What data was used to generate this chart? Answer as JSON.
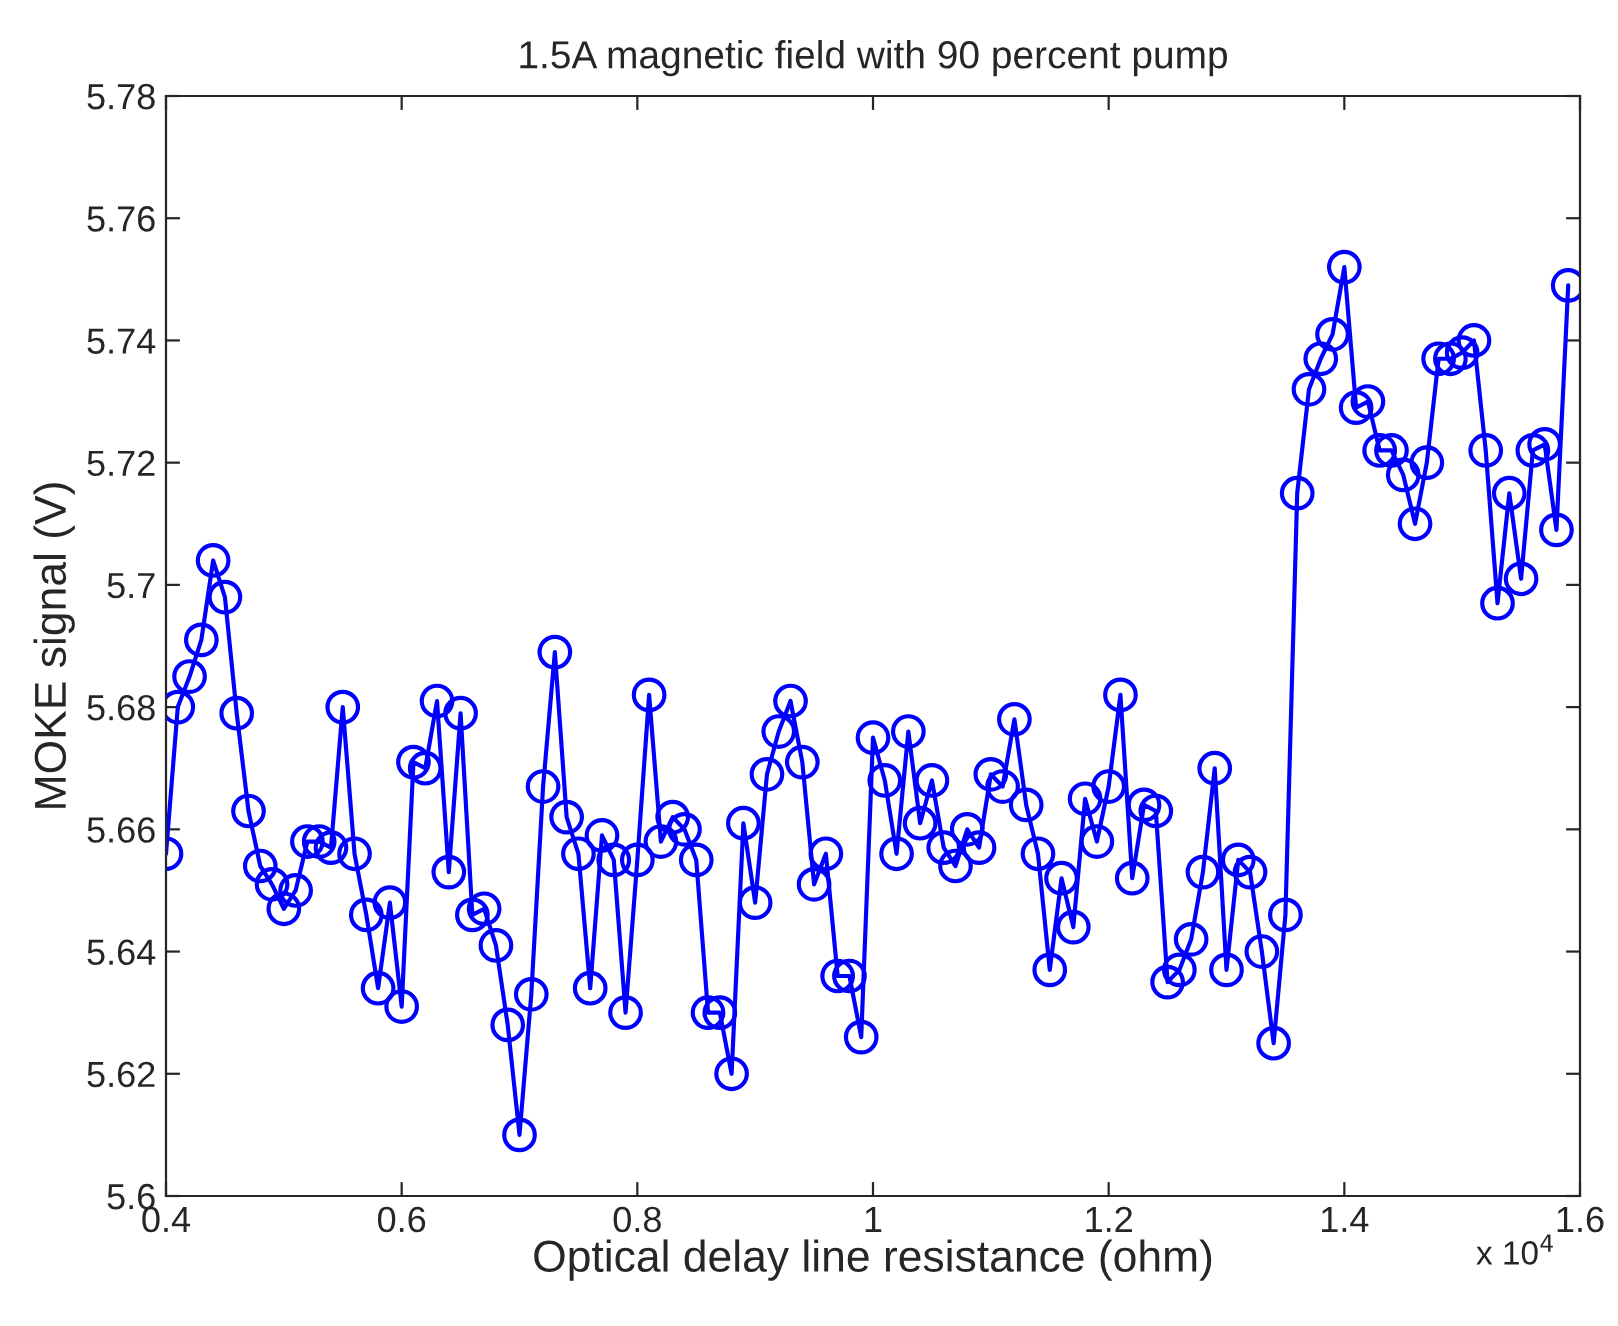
{
  "chart_data": {
    "type": "line",
    "title": "1.5A magnetic field with 90 percent pump",
    "xlabel": "Optical delay line resistance (ohm)",
    "ylabel": "MOKE signal (V)",
    "annotations": [
      "x 10$^{4}$"
    ],
    "x": [
      0.4,
      0.41,
      0.42,
      0.43,
      0.44,
      0.45,
      0.46,
      0.47,
      0.48,
      0.49,
      0.5,
      0.51,
      0.52,
      0.53,
      0.54,
      0.55,
      0.56,
      0.57,
      0.58,
      0.59,
      0.6,
      0.61,
      0.62,
      0.63,
      0.64,
      0.65,
      0.66,
      0.67,
      0.68,
      0.69,
      0.7,
      0.71,
      0.72,
      0.73,
      0.74,
      0.75,
      0.76,
      0.77,
      0.78,
      0.79,
      0.8,
      0.81,
      0.82,
      0.83,
      0.84,
      0.85,
      0.86,
      0.87,
      0.88,
      0.89,
      0.9,
      0.91,
      0.92,
      0.93,
      0.94,
      0.95,
      0.96,
      0.97,
      0.98,
      0.99,
      1.0,
      1.01,
      1.02,
      1.03,
      1.04,
      1.05,
      1.06,
      1.07,
      1.08,
      1.09,
      1.1,
      1.11,
      1.12,
      1.13,
      1.14,
      1.15,
      1.16,
      1.17,
      1.18,
      1.19,
      1.2,
      1.21,
      1.22,
      1.23,
      1.24,
      1.25,
      1.26,
      1.27,
      1.28,
      1.29,
      1.3,
      1.31,
      1.32,
      1.33,
      1.34,
      1.35,
      1.36,
      1.37,
      1.38,
      1.39,
      1.4,
      1.41,
      1.42,
      1.43,
      1.44,
      1.45,
      1.46,
      1.47,
      1.48,
      1.49,
      1.5,
      1.51,
      1.52,
      1.53,
      1.54,
      1.55,
      1.56,
      1.57,
      1.58,
      1.59
    ],
    "series": [
      {
        "color": "#0000ff",
        "values": [
          5.656,
          5.68,
          5.685,
          5.691,
          5.704,
          5.698,
          5.679,
          5.663,
          5.654,
          5.651,
          5.647,
          5.65,
          5.658,
          5.658,
          5.657,
          5.68,
          5.656,
          5.646,
          5.634,
          5.648,
          5.631,
          5.671,
          5.67,
          5.681,
          5.653,
          5.679,
          5.646,
          5.647,
          5.641,
          5.628,
          5.61,
          5.633,
          5.667,
          5.689,
          5.662,
          5.656,
          5.634,
          5.659,
          5.655,
          5.63,
          5.655,
          5.682,
          5.658,
          5.662,
          5.66,
          5.655,
          5.63,
          5.63,
          5.62,
          5.661,
          5.648,
          5.669,
          5.676,
          5.681,
          5.671,
          5.651,
          5.656,
          5.636,
          5.636,
          5.626,
          5.675,
          5.668,
          5.656,
          5.676,
          5.661,
          5.668,
          5.657,
          5.654,
          5.66,
          5.657,
          5.669,
          5.667,
          5.678,
          5.664,
          5.656,
          5.637,
          5.652,
          5.644,
          5.665,
          5.658,
          5.667,
          5.682,
          5.652,
          5.664,
          5.663,
          5.635,
          5.637,
          5.642,
          5.653,
          5.67,
          5.637,
          5.655,
          5.653,
          5.64,
          5.625,
          5.646,
          5.715,
          5.732,
          5.737,
          5.741,
          5.752,
          5.729,
          5.73,
          5.722,
          5.722,
          5.718,
          5.71,
          5.72,
          5.737,
          5.737,
          5.738,
          5.74,
          5.722,
          5.697,
          5.715,
          5.701,
          5.722,
          5.723,
          5.709,
          5.749
        ]
      }
    ],
    "xlim": [
      0.4,
      1.6
    ],
    "xticks": [
      0.4,
      0.6,
      0.8,
      1,
      1.2,
      1.4,
      1.6
    ],
    "ylim": [
      5.6,
      5.78
    ],
    "yticks": [
      5.6,
      5.62,
      5.64,
      5.66,
      5.68,
      5.7,
      5.72,
      5.74,
      5.76,
      5.78
    ],
    "marker": "circle",
    "line_style": "solid",
    "grid": false
  }
}
